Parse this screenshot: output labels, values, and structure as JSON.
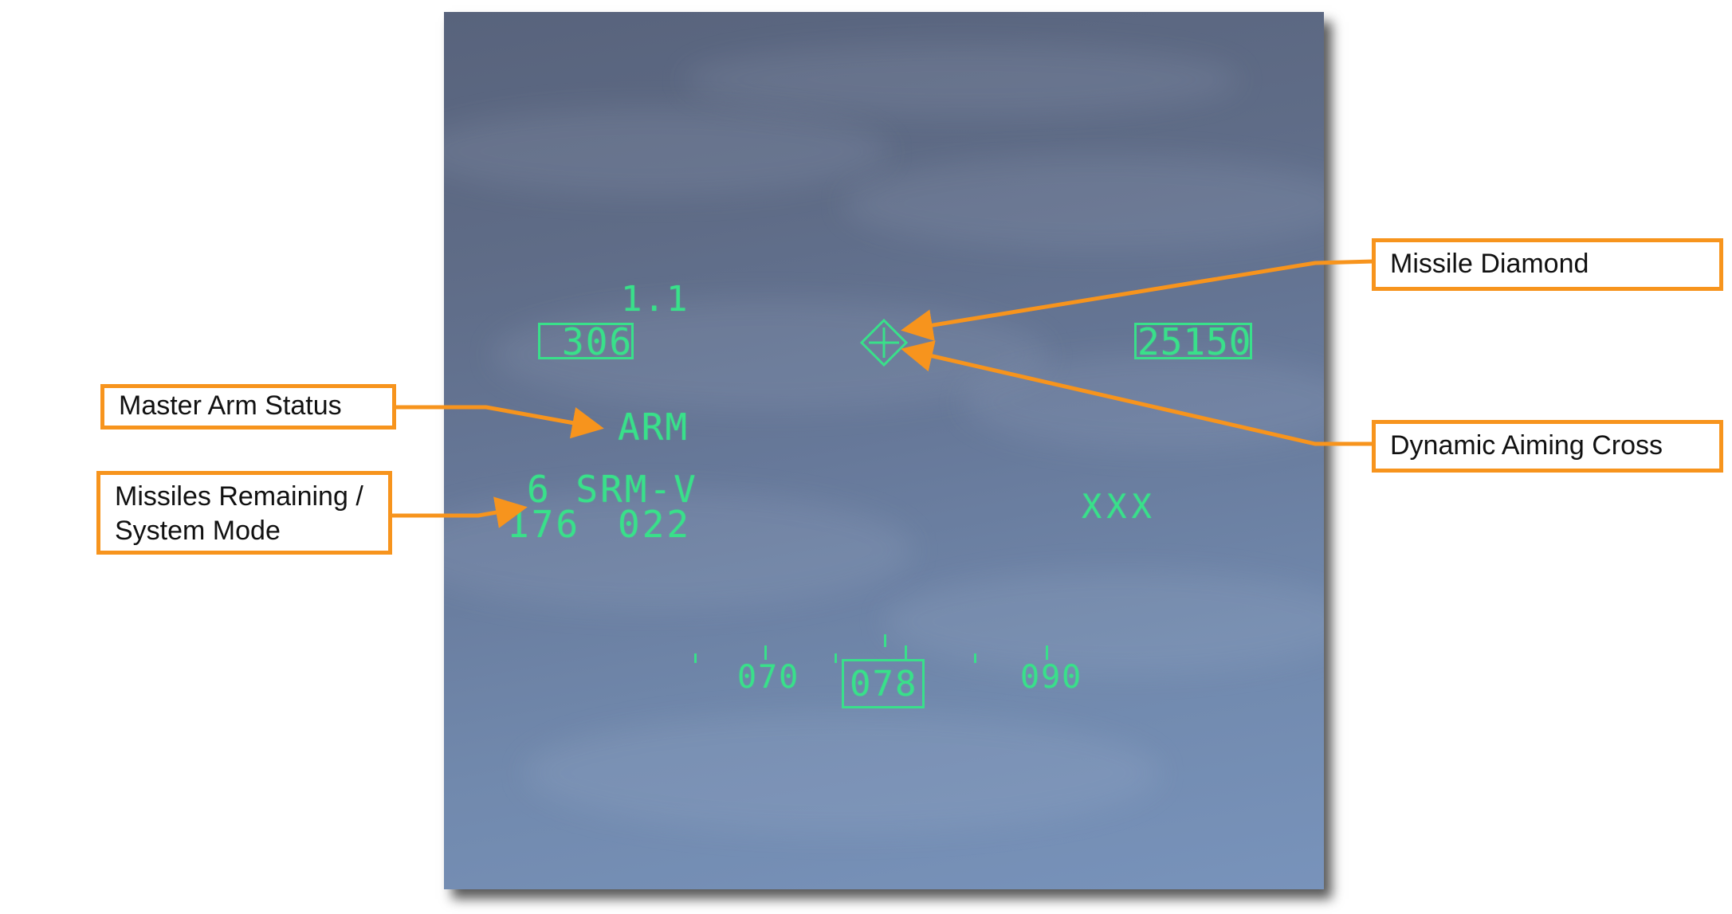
{
  "hud": {
    "mach": "1.1",
    "airspeed": "306",
    "altitude": "25150",
    "master_arm": "ARM",
    "missile_status": "6 SRM-V",
    "range_left": "176",
    "range_right": "022",
    "target_marker": "XXX",
    "heading_scale": {
      "left": "070",
      "current": "078",
      "right": "090"
    }
  },
  "callouts": {
    "missile_diamond": "Missile Diamond",
    "dynamic_aiming_cross": "Dynamic Aiming Cross",
    "master_arm_status": "Master Arm Status",
    "missiles_remaining_line1": "Missiles Remaining /",
    "missiles_remaining_line2": "System Mode"
  },
  "colors": {
    "hud_symbology": "#39e08a",
    "callout_border": "#f7941d",
    "sky": "#67799a"
  },
  "icons": {
    "missile_diamond": "diamond-icon",
    "aiming_cross": "crosshair-icon"
  }
}
